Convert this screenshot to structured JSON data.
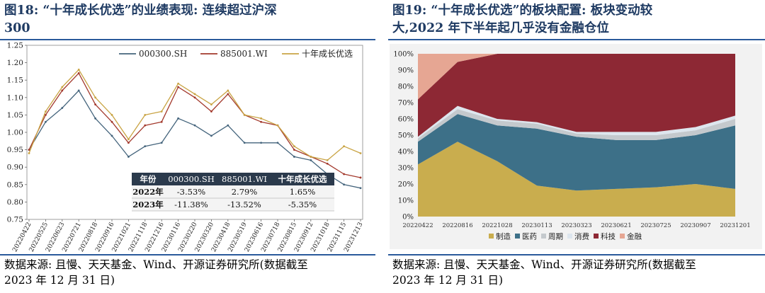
{
  "left": {
    "title_line1": "图18: “十年成长优选”的业绩表现: 连续超过沪深",
    "title_line2": "300",
    "source_line1": "数据来源: 且慢、天天基金、Wind、开源证券研究所(数据截至",
    "source_line2": "2023 年 12 月 31 日)",
    "chart_data": {
      "type": "line",
      "x": [
        "20220422",
        "20220525",
        "20220623",
        "20220721",
        "20220818",
        "20220916",
        "20221021",
        "20221118",
        "20221216",
        "20230116",
        "20230220",
        "20230320",
        "20230418",
        "20230519",
        "20230616",
        "20230718",
        "20230815",
        "20230912",
        "20231018",
        "20231115",
        "20231213"
      ],
      "series": [
        {
          "name": "000300.SH",
          "color": "#44647c",
          "values": [
            0.95,
            1.03,
            1.07,
            1.12,
            1.04,
            0.99,
            0.93,
            0.96,
            0.97,
            1.04,
            1.02,
            0.99,
            1.02,
            0.97,
            0.97,
            0.97,
            0.93,
            0.92,
            0.88,
            0.85,
            0.84
          ]
        },
        {
          "name": "885001.WI",
          "color": "#a3392c",
          "values": [
            0.95,
            1.05,
            1.12,
            1.17,
            1.08,
            1.03,
            0.97,
            1.02,
            1.03,
            1.13,
            1.1,
            1.06,
            1.11,
            1.05,
            1.03,
            1.02,
            0.95,
            0.93,
            0.91,
            0.88,
            0.87
          ]
        },
        {
          "name": "十年成长优选",
          "color": "#c9a444",
          "values": [
            0.94,
            1.06,
            1.13,
            1.18,
            1.1,
            1.05,
            0.98,
            1.05,
            1.06,
            1.14,
            1.11,
            1.08,
            1.12,
            1.05,
            1.04,
            1.02,
            0.96,
            0.93,
            0.92,
            0.96,
            0.94
          ]
        }
      ],
      "ylim": [
        0.75,
        1.25
      ],
      "yticks": [
        "0.75",
        "0.80",
        "0.85",
        "0.90",
        "0.95",
        "1.00",
        "1.05",
        "1.10",
        "1.15",
        "1.20",
        "1.25"
      ],
      "grid": false,
      "legend": "top",
      "table": {
        "headers": [
          "年份",
          "000300.SH",
          "885001.WI",
          "十年成长优选"
        ],
        "rows": [
          [
            "2022年",
            "-3.53%",
            "2.79%",
            "1.65%"
          ],
          [
            "2023年",
            "-11.38%",
            "-13.52%",
            "-5.35%"
          ]
        ],
        "header_bg": "#2b3a4c"
      }
    }
  },
  "right": {
    "title_line1": "图19: “十年成长优选”的板块配置: 板块变动较",
    "title_line2": "大,2022 年下半年起几乎没有金融仓位",
    "source_line1": "数据来源: 且慢、天天基金、Wind、开源证券研究所(数据截至",
    "source_line2": "2023 年 12 月 31 日)",
    "chart_data": {
      "type": "area",
      "stacked": true,
      "x": [
        "20220422",
        "20220816",
        "20221028",
        "20230113",
        "20230323",
        "20230621",
        "20230725",
        "20230907",
        "20231201"
      ],
      "series": [
        {
          "name": "制造",
          "color": "#c9ad4e",
          "values": [
            32,
            46,
            34,
            19,
            16,
            17,
            18,
            20,
            17
          ]
        },
        {
          "name": "医药",
          "color": "#3d7088",
          "values": [
            14,
            17,
            22,
            35,
            33,
            30,
            29,
            30,
            39
          ]
        },
        {
          "name": "周期",
          "color": "#c4c9cd",
          "values": [
            2,
            3,
            3,
            3,
            2,
            3,
            3,
            3,
            4
          ]
        },
        {
          "name": "消费",
          "color": "#dde6ee",
          "values": [
            1,
            2,
            1,
            1,
            1,
            2,
            2,
            2,
            2
          ]
        },
        {
          "name": "科技",
          "color": "#8d2834",
          "values": [
            23,
            27,
            40,
            42,
            48,
            48,
            48,
            45,
            38
          ]
        },
        {
          "name": "金融",
          "color": "#e6a693",
          "values": [
            28,
            5,
            0,
            0,
            0,
            0,
            0,
            0,
            0
          ]
        }
      ],
      "ylim": [
        0,
        100
      ],
      "yticks": [
        "0%",
        "10%",
        "20%",
        "30%",
        "40%",
        "50%",
        "60%",
        "70%",
        "80%",
        "90%",
        "100%"
      ],
      "legend": "bottom",
      "plot_bg": "#f2f2f2"
    }
  }
}
